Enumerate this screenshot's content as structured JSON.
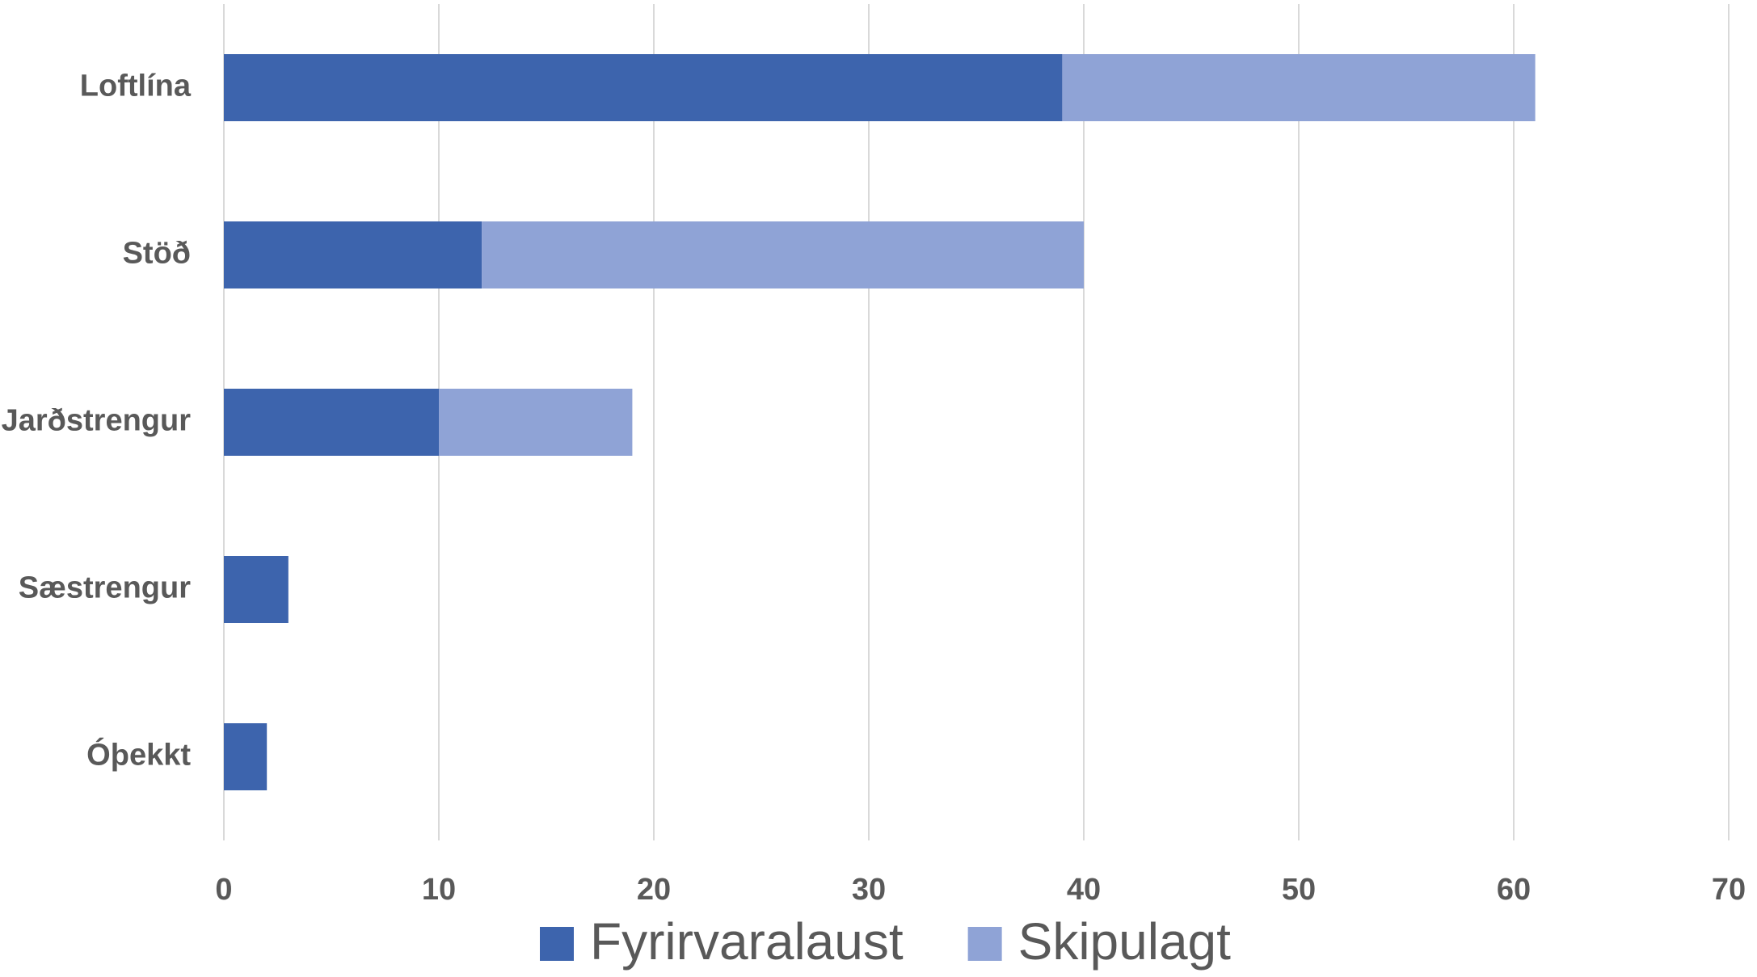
{
  "chart_data": {
    "type": "stacked-bar-horizontal",
    "categories": [
      "Loftlína",
      "Stöð",
      "Jarðstrengur",
      "Sæstrengur",
      "Óþekkt"
    ],
    "series": [
      {
        "name": "Fyrirvaralaust",
        "color": "#3d64ad",
        "values": [
          39,
          12,
          10,
          3,
          2
        ]
      },
      {
        "name": "Skipulagt",
        "color": "#8fa3d6",
        "values": [
          22,
          28,
          9,
          0,
          0
        ]
      }
    ],
    "xlim": [
      0,
      70
    ],
    "xticks": [
      0,
      10,
      20,
      30,
      40,
      50,
      60,
      70
    ],
    "grid": true,
    "legend": "bottom"
  }
}
